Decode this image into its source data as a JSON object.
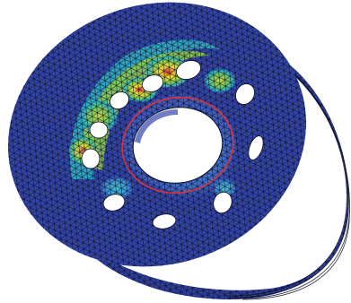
{
  "viewport": {
    "background": "#ffffff",
    "colors": {
      "mesh_base": "#3346a8",
      "mesh_line": "#0d0f24",
      "hole_fill": "#ffffff",
      "highlight_ring": "#e0303a",
      "stress_low": "#3b5fd0",
      "stress_mid_low": "#2fb6c8",
      "stress_mid": "#8fd04a",
      "stress_mid_high": "#f2e13a",
      "stress_high": "#e8332a"
    },
    "model": "fea-stress-contour-pulley-with-holes"
  }
}
